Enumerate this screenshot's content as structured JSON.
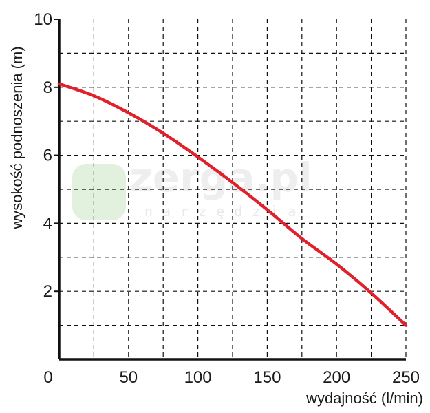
{
  "chart_data": {
    "type": "line",
    "xlabel": "wydajność (l/min)",
    "ylabel": "wysokość podnoszenia (m)",
    "xlim": [
      0,
      250
    ],
    "ylim": [
      0,
      10
    ],
    "x_ticks": [
      0,
      50,
      100,
      150,
      200,
      250
    ],
    "y_ticks": [
      2,
      4,
      6,
      8,
      10
    ],
    "x_tick_labels": [
      "0",
      "50",
      "100",
      "150",
      "200",
      "250"
    ],
    "y_tick_labels": [
      "2",
      "4",
      "6",
      "8",
      "10"
    ],
    "grid": true,
    "grid_style": "dashed",
    "x_grid_step": 25,
    "y_grid_step": 1,
    "series": [
      {
        "color": "#e0202a",
        "x": [
          0,
          25,
          50,
          75,
          100,
          125,
          150,
          175,
          200,
          225,
          250
        ],
        "y": [
          8.1,
          7.75,
          7.25,
          6.65,
          5.95,
          5.2,
          4.4,
          3.55,
          2.8,
          1.95,
          1.0
        ]
      }
    ]
  },
  "watermark": {
    "text": "zerga.pl",
    "subtext": "narzędzia"
  }
}
